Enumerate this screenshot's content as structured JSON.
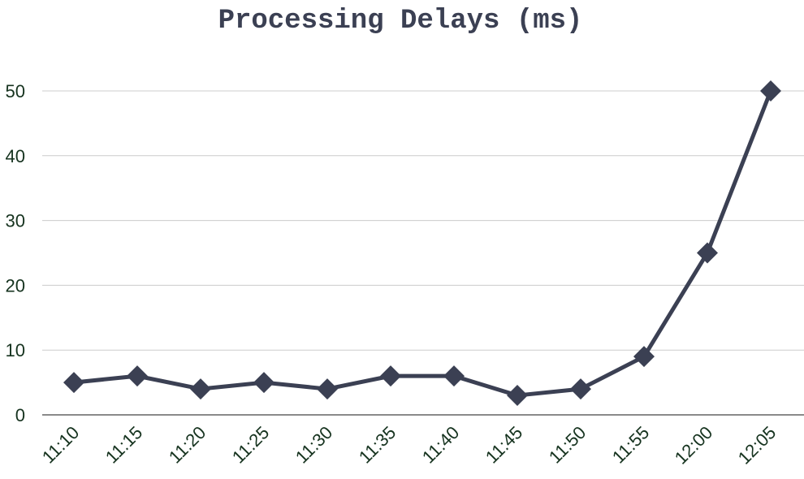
{
  "chart_data": {
    "type": "line",
    "title": "Processing Delays (ms)",
    "xlabel": "",
    "ylabel": "",
    "categories": [
      "11:10",
      "11:15",
      "11:20",
      "11:25",
      "11:30",
      "11:35",
      "11:40",
      "11:45",
      "11:50",
      "11:55",
      "12:00",
      "12:05"
    ],
    "series": [
      {
        "values": [
          5,
          6,
          4,
          5,
          4,
          6,
          6,
          3,
          4,
          9,
          25,
          50
        ],
        "color": "#3b4053",
        "marker": "diamond"
      }
    ],
    "ylim": [
      0,
      50
    ],
    "yticks": [
      "0",
      "10",
      "20",
      "30",
      "40",
      "50"
    ],
    "grid": "horizontal",
    "legend": "none"
  }
}
